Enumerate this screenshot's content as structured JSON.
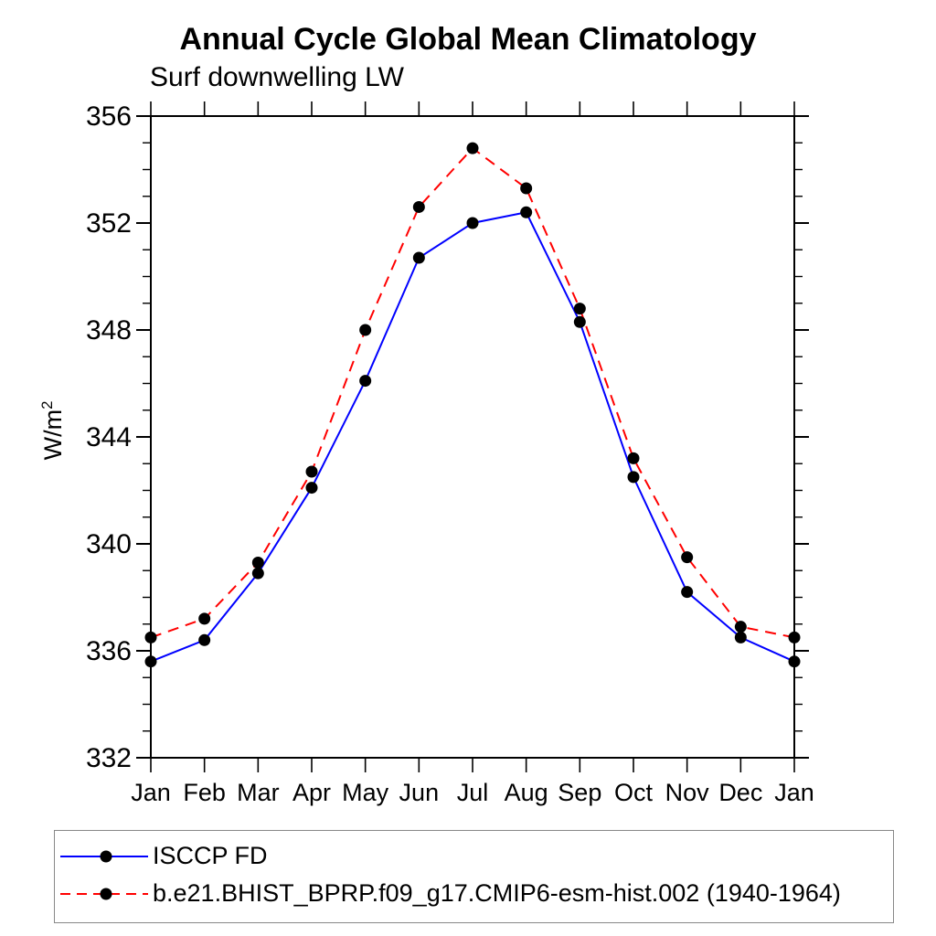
{
  "page": {
    "title": "Annual Cycle Global Mean Climatology",
    "subtitle": "Surf downwelling LW"
  },
  "axes": {
    "ylabel_base": "W/m",
    "ylabel_exp": "2",
    "ylabel_full": "W/m²"
  },
  "colors": {
    "series1": "#0000ff",
    "series2": "#ff0000",
    "marker": "#000000",
    "axis": "#000000",
    "legend_border": "#888888"
  },
  "chart_data": {
    "type": "line",
    "title": "Annual Cycle Global Mean Climatology",
    "subtitle": "Surf downwelling LW",
    "xlabel": "",
    "ylabel": "W/m²",
    "categories": [
      "Jan",
      "Feb",
      "Mar",
      "Apr",
      "May",
      "Jun",
      "Jul",
      "Aug",
      "Sep",
      "Oct",
      "Nov",
      "Dec",
      "Jan"
    ],
    "series": [
      {
        "name": "ISCCP FD",
        "color": "#0000ff",
        "style": "solid",
        "marker": "circle",
        "marker_color": "#000000",
        "values": [
          335.6,
          336.4,
          338.9,
          342.1,
          346.1,
          350.7,
          352.0,
          352.4,
          348.3,
          342.5,
          338.2,
          336.5,
          335.6
        ]
      },
      {
        "name": "b.e21.BHIST_BPRP.f09_g17.CMIP6-esm-hist.002 (1940-1964)",
        "color": "#ff0000",
        "style": "dashed",
        "marker": "circle",
        "marker_color": "#000000",
        "values": [
          336.5,
          337.2,
          339.3,
          342.7,
          348.0,
          352.6,
          354.8,
          353.3,
          348.8,
          343.2,
          339.5,
          336.9,
          336.5
        ]
      }
    ],
    "ylim": [
      332,
      356
    ],
    "y_major_step": 4,
    "y_minor_step": 1,
    "y_major_ticks": [
      332,
      336,
      340,
      344,
      348,
      352,
      356
    ],
    "grid": false,
    "legend_position": "bottom"
  }
}
